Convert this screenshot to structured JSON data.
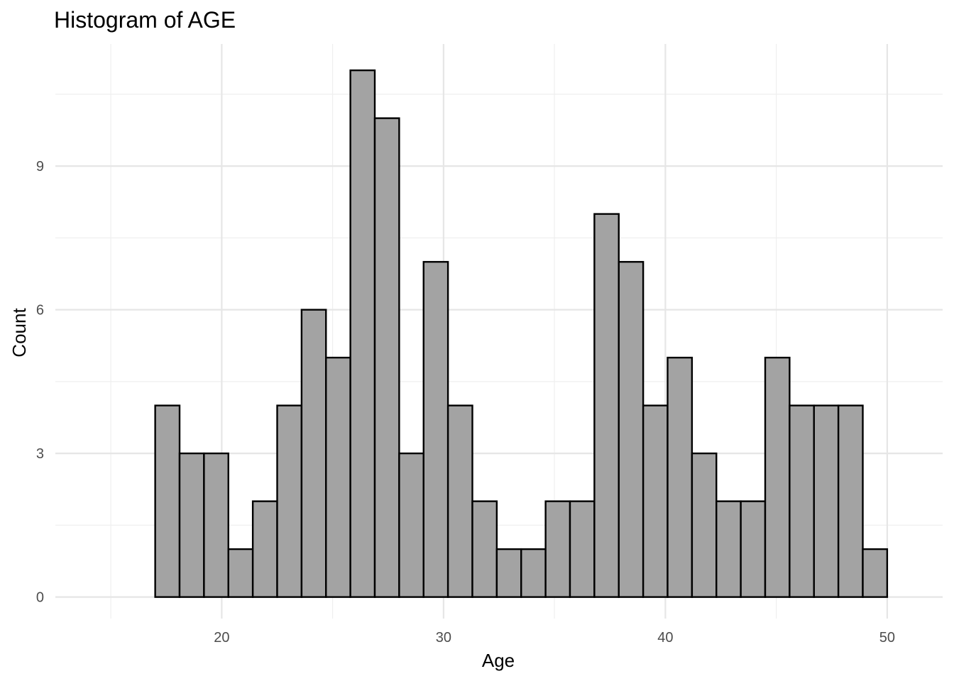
{
  "chart_data": {
    "type": "bar",
    "title": "Histogram of AGE",
    "xlabel": "Age",
    "ylabel": "Count",
    "bin_start": 17.0,
    "bin_width": 1.1,
    "counts": [
      4,
      3,
      3,
      1,
      2,
      4,
      6,
      5,
      11,
      10,
      3,
      7,
      4,
      2,
      1,
      1,
      2,
      2,
      8,
      7,
      4,
      5,
      3,
      2,
      2,
      5,
      4,
      4,
      4,
      1
    ],
    "xlim": [
      12.5,
      52.5
    ],
    "ylim": [
      -0.45,
      11.55
    ],
    "x_ticks": [
      20,
      30,
      40,
      50
    ],
    "x_tick_labels": [
      "20",
      "30",
      "40",
      "50"
    ],
    "x_minor_ticks": [
      15,
      25,
      35,
      45
    ],
    "y_ticks": [
      0,
      3,
      6,
      9
    ],
    "y_tick_labels": [
      "0",
      "3",
      "6",
      "9"
    ],
    "y_minor_ticks": [
      1.5,
      4.5,
      7.5,
      10.5
    ],
    "grid": true,
    "bar_color": "#a3a3a3",
    "bar_edge_color": "#000000"
  }
}
